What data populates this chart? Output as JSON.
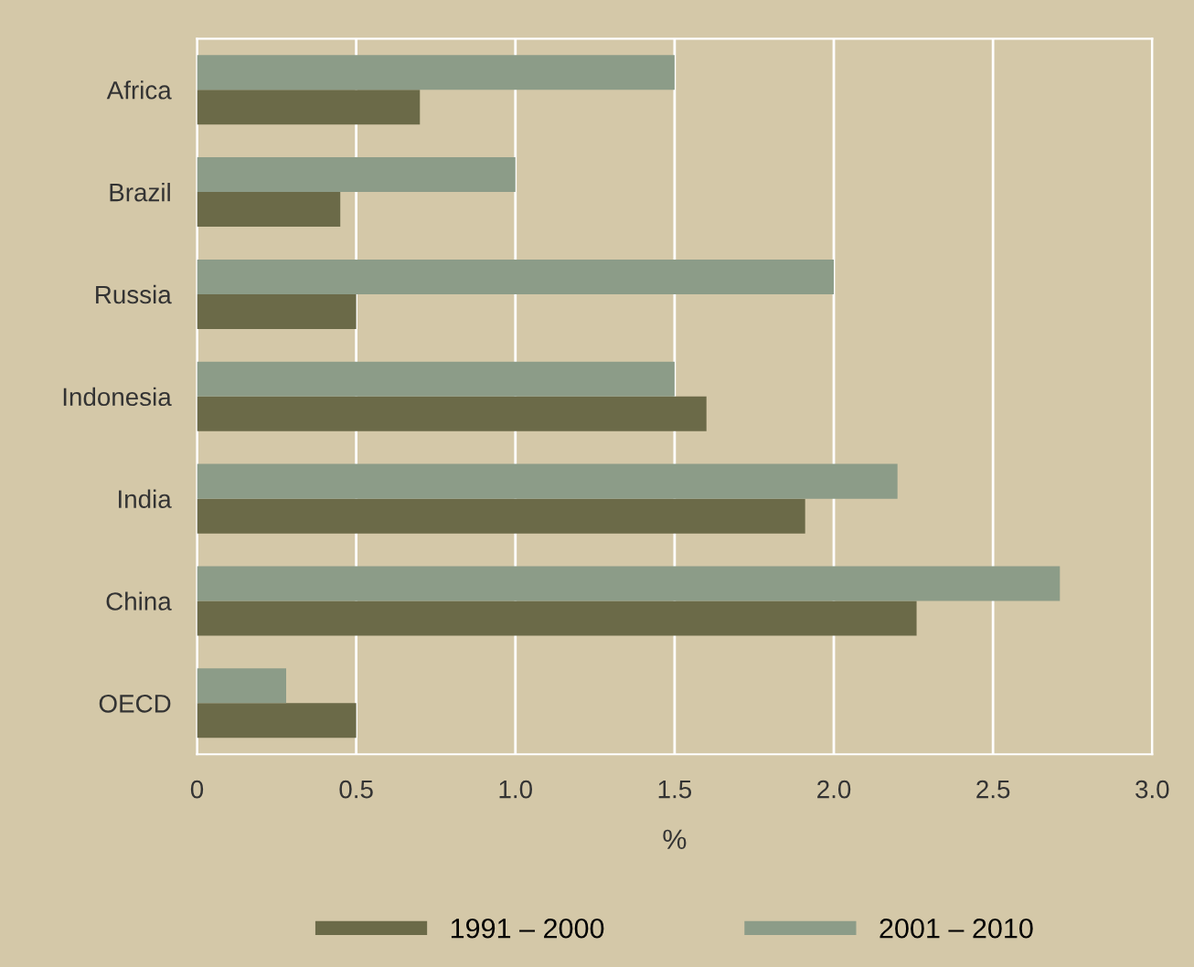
{
  "chart_data": {
    "type": "bar",
    "orientation": "horizontal",
    "xlabel": "%",
    "categories": [
      "Africa",
      "Brazil",
      "Russia",
      "Indonesia",
      "India",
      "China",
      "OECD"
    ],
    "series": [
      {
        "name": "1991 – 2000",
        "color": "#6b6a48",
        "values": [
          0.7,
          0.45,
          0.5,
          1.6,
          1.91,
          2.26,
          0.5
        ]
      },
      {
        "name": "2001 – 2010",
        "color": "#8c9c88",
        "values": [
          1.5,
          1.0,
          2.0,
          1.5,
          2.2,
          2.71,
          0.28
        ]
      }
    ],
    "xlim": [
      0,
      3.0
    ],
    "xticks": [
      0,
      0.5,
      {
        "value": 1,
        "label": "1.0"
      },
      1.5,
      {
        "value": 2,
        "label": "2.0"
      },
      2.5,
      {
        "value": 3,
        "label": "3.0"
      }
    ],
    "grid": "x",
    "legend": "bottom"
  }
}
